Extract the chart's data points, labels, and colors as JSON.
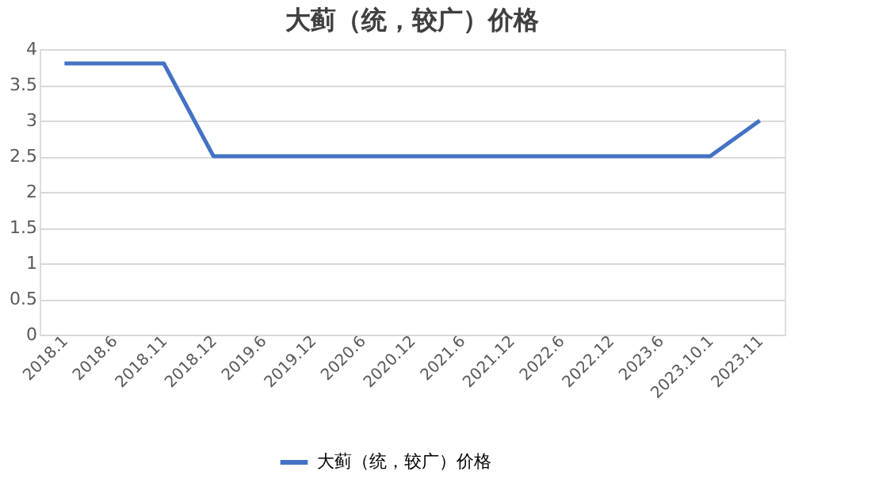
{
  "chart_data": {
    "type": "line",
    "title": "大蓟（统，较广）价格",
    "categories": [
      "2018.1",
      "2018.6",
      "2018.11",
      "2018.12",
      "2019.6",
      "2019.12",
      "2020.6",
      "2020.12",
      "2021.6",
      "2021.12",
      "2022.6",
      "2022.12",
      "2023.6",
      "2023.10.1",
      "2023.11"
    ],
    "series": [
      {
        "name": "大蓟（统，较广）价格",
        "color": "#4472c4",
        "values": [
          3.8,
          3.8,
          3.8,
          2.5,
          2.5,
          2.5,
          2.5,
          2.5,
          2.5,
          2.5,
          2.5,
          2.5,
          2.5,
          2.5,
          3.0
        ]
      }
    ],
    "ylim": [
      0,
      4
    ],
    "yticks": [
      0,
      0.5,
      1,
      1.5,
      2,
      2.5,
      3,
      3.5,
      4
    ],
    "grid": "y",
    "legend": "bottom",
    "marker": "none",
    "line_style": "solid"
  }
}
